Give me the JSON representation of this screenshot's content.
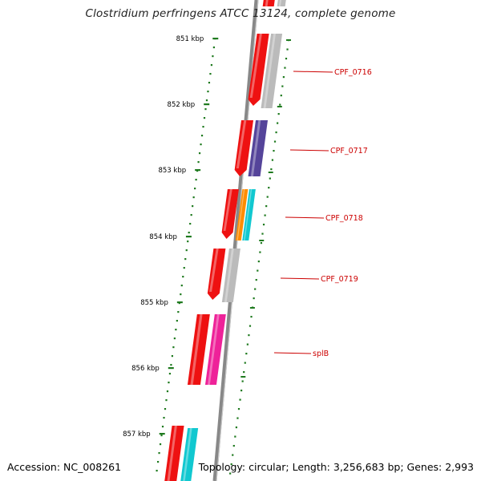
{
  "title": "Clostridium perfringens ATCC 13124, complete genome",
  "footer": {
    "accession": "Accession: NC_008261",
    "summary": "Topology: circular; Length: 3,256,683 bp; Genes: 2,993"
  },
  "ruler": {
    "tick_labels": [
      "851 kbp",
      "852 kbp",
      "853 kbp",
      "854 kbp",
      "855 kbp",
      "856 kbp",
      "857 kbp"
    ],
    "tick_color": "#1f7a1f"
  },
  "backbone_color": "#888888",
  "gene_labels": [
    "CPF_0716",
    "CPF_0717",
    "CPF_0718",
    "CPF_0719",
    "splB"
  ],
  "label_color": "#cc0000",
  "gene_colors": {
    "strand": "#ee1111",
    "grey": "#bbbbbb",
    "purple": "#55449a",
    "orange": "#ff8c00",
    "cyan": "#11c8d0",
    "magenta": "#ee2299"
  }
}
